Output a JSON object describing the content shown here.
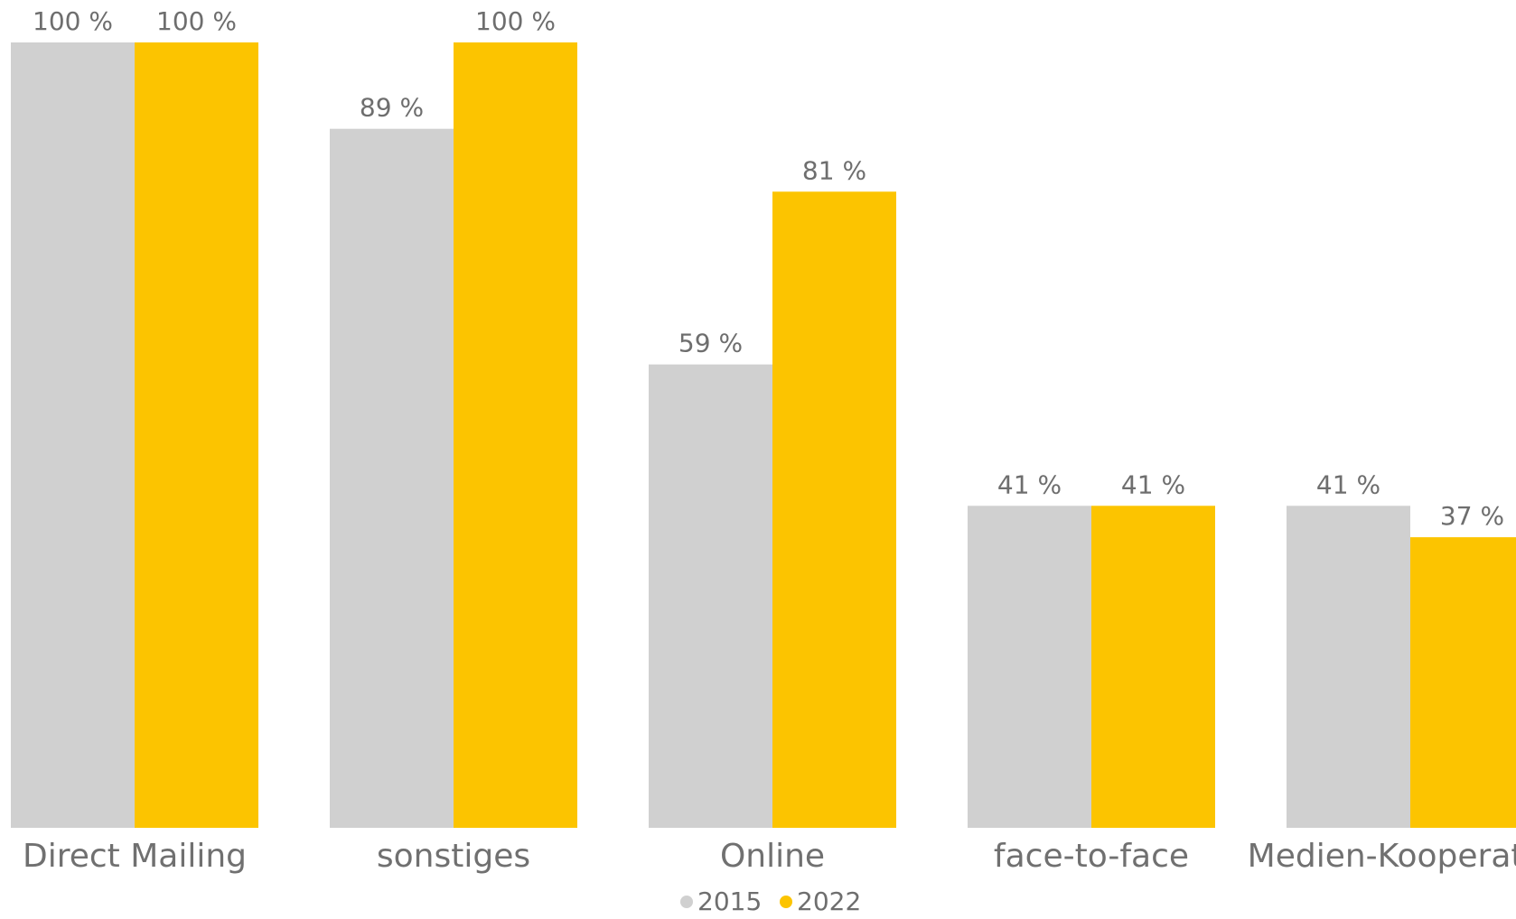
{
  "chart_data": {
    "type": "bar",
    "categories": [
      "Direct Mailing",
      "sonstiges",
      "Online",
      "face-to-face",
      "Medien-Kooperation"
    ],
    "series": [
      {
        "name": "2015",
        "color": "#d0d0d0",
        "values": [
          100,
          89,
          59,
          41,
          41
        ],
        "labels": [
          "100 %",
          "89 %",
          "59 %",
          "41 %",
          "41 %"
        ]
      },
      {
        "name": "2022",
        "color": "#fcc400",
        "values": [
          100,
          100,
          81,
          41,
          37
        ],
        "labels": [
          "100 %",
          "100 %",
          "81 %",
          "41 %",
          "37 %"
        ]
      }
    ],
    "ylim": [
      0,
      100
    ],
    "grid": false,
    "legend_position": "bottom-center",
    "label_color": "#6e6e6e"
  }
}
